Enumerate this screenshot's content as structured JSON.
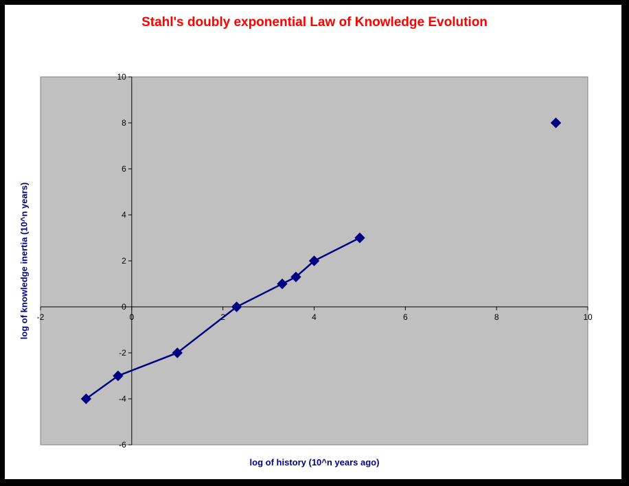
{
  "chart_data": {
    "type": "scatter",
    "title": "Stahl's doubly exponential Law of Knowledge Evolution",
    "xlabel": "log of history (10^n years ago)",
    "ylabel": "log of knowledge inertia (10^n years)",
    "xlim": [
      -2,
      10
    ],
    "ylim": [
      -6,
      10
    ],
    "x_ticks": [
      -2,
      0,
      2,
      4,
      6,
      8,
      10
    ],
    "y_ticks": [
      -6,
      -4,
      -2,
      0,
      2,
      4,
      6,
      8,
      10
    ],
    "grid": false,
    "legend": "none",
    "plot_background": "#c0c0c0",
    "series": [
      {
        "color": "#000080",
        "marker": "diamond",
        "connected": true,
        "points": [
          {
            "x": -1,
            "y": -4
          },
          {
            "x": -0.3,
            "y": -3
          },
          {
            "x": 1,
            "y": -2
          },
          {
            "x": 2.3,
            "y": 0
          },
          {
            "x": 3.3,
            "y": 1
          },
          {
            "x": 3.6,
            "y": 1.3
          },
          {
            "x": 4,
            "y": 2
          },
          {
            "x": 5,
            "y": 3
          }
        ]
      },
      {
        "color": "#000080",
        "marker": "diamond",
        "connected": false,
        "points": [
          {
            "x": 9.3,
            "y": 8
          }
        ]
      }
    ]
  }
}
